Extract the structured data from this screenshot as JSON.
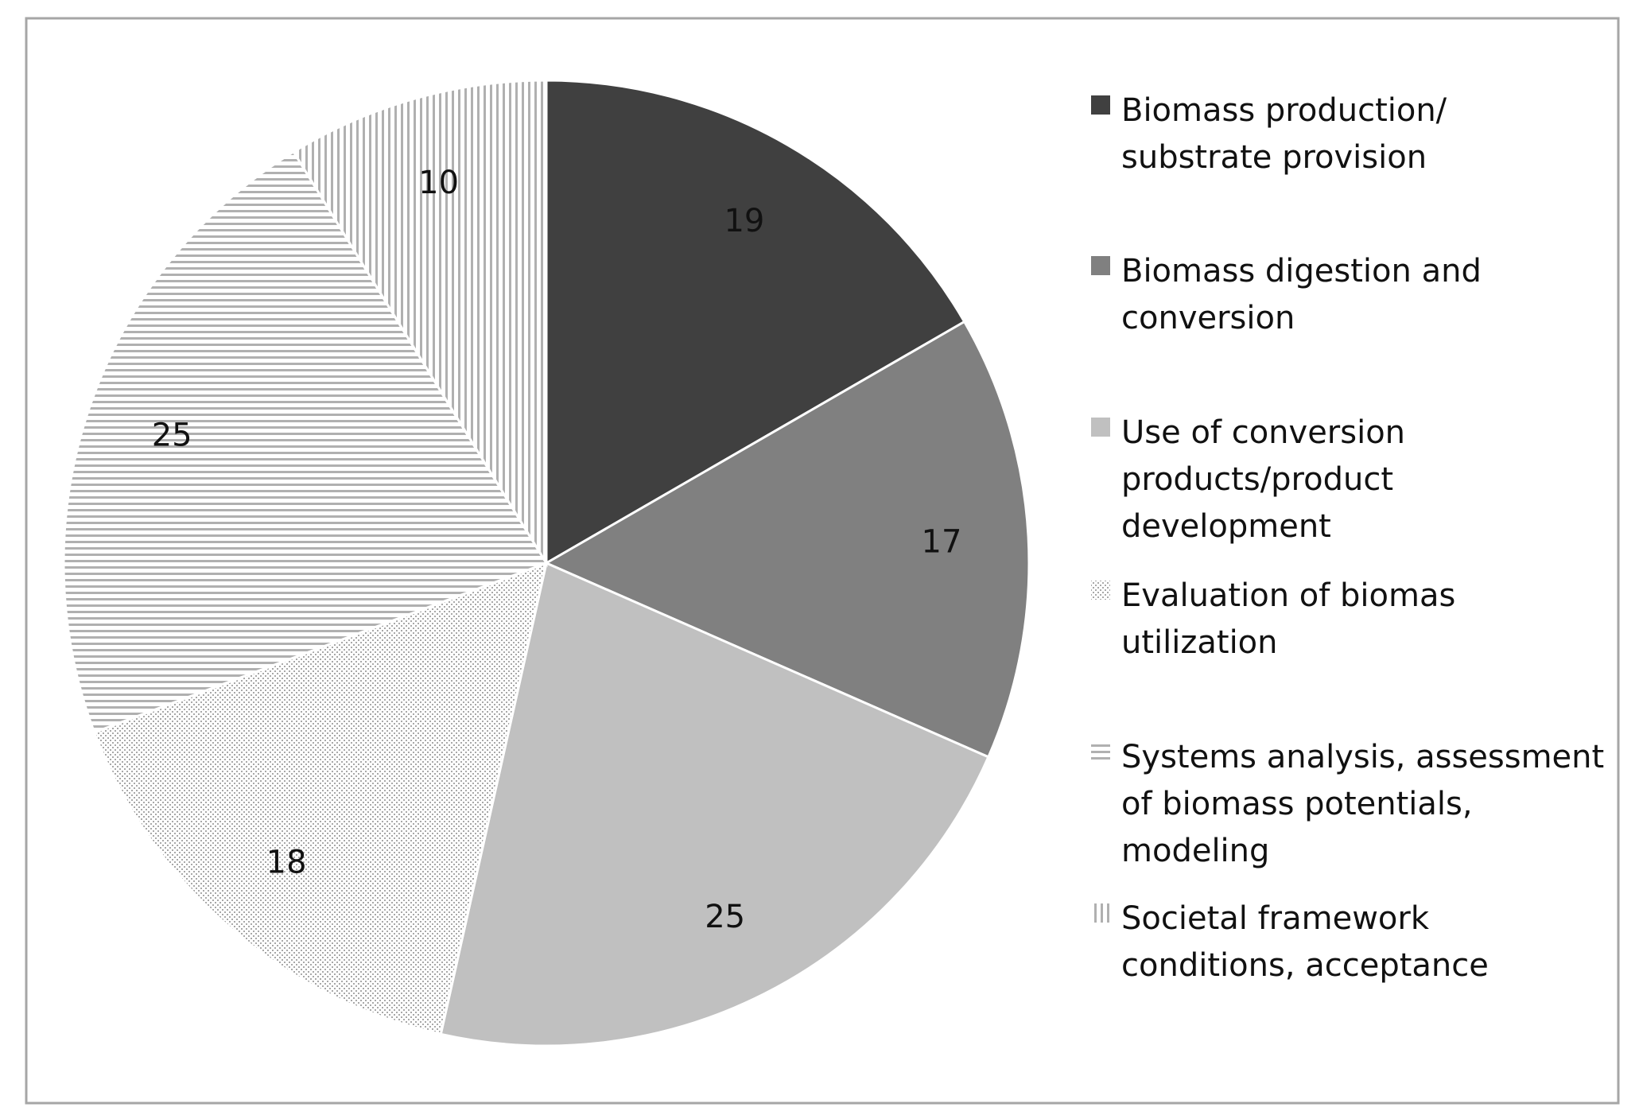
{
  "chart_data": {
    "type": "pie",
    "title": "",
    "start_angle_deg": 0,
    "direction": "clockwise",
    "legend_position": "right",
    "slices": [
      {
        "label": "Biomass production/ substrate provision",
        "legend_lines": [
          "Biomass production/",
          "substrate provision"
        ],
        "value": 19,
        "value_label": "19",
        "color": "#404040",
        "pattern": "solid"
      },
      {
        "label": "Biomass digestion and conversion",
        "legend_lines": [
          "Biomass digestion and",
          "conversion"
        ],
        "value": 17,
        "value_label": "17",
        "color": "#808080",
        "pattern": "solid"
      },
      {
        "label": "Use of conversion products/product development",
        "legend_lines": [
          "Use of conversion",
          "products/product",
          "development"
        ],
        "value": 25,
        "value_label": "25",
        "color": "#c0c0c0",
        "pattern": "solid"
      },
      {
        "label": "Evaluation of biomas utilization",
        "legend_lines": [
          "Evaluation of biomas",
          "utilization"
        ],
        "value": 18,
        "value_label": "18",
        "color": "#b0b0b0",
        "pattern": "dots"
      },
      {
        "label": "Systems analysis, assessment of biomass potentials, modeling",
        "legend_lines": [
          "Systems analysis, assessment",
          "of biomass potentials,",
          "modeling"
        ],
        "value": 25,
        "value_label": "25",
        "color": "#b8b8b8",
        "pattern": "horizontal-lines"
      },
      {
        "label": "Societal framework conditions, acceptance",
        "legend_lines": [
          "Societal framework",
          "conditions, acceptance"
        ],
        "value": 10,
        "value_label": "10",
        "color": "#c4c4c4",
        "pattern": "vertical-lines"
      }
    ],
    "colors": {
      "border": "#a6a6a6",
      "background": "#ffffff",
      "text": "#111111"
    }
  }
}
